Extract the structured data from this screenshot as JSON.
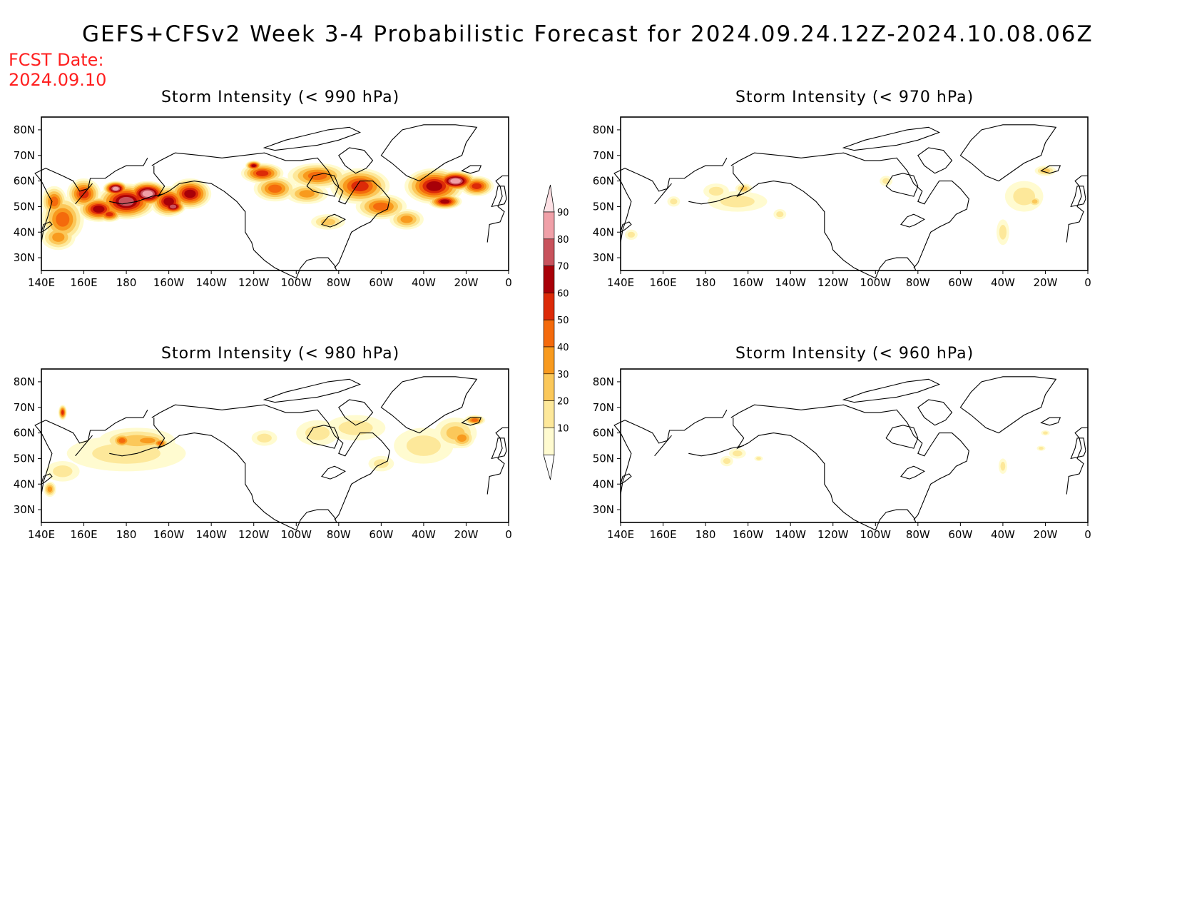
{
  "header": {
    "title": "GEFS+CFSv2 Week 3-4 Probabilistic Forecast for 2024.09.24.12Z-2024.10.08.06Z",
    "fcst_label": "FCST Date:",
    "fcst_value": "2024.09.10"
  },
  "axes": {
    "lon_labels": [
      "140E",
      "160E",
      "180",
      "160W",
      "140W",
      "120W",
      "100W",
      "80W",
      "60W",
      "40W",
      "20W",
      "0"
    ],
    "lat_labels": [
      "80N",
      "70N",
      "60N",
      "50N",
      "40N",
      "30N"
    ],
    "lon_range": [
      140,
      360
    ],
    "lat_range": [
      25,
      85
    ]
  },
  "colorbar": {
    "levels": [
      "10",
      "20",
      "30",
      "40",
      "50",
      "60",
      "70",
      "80",
      "90"
    ],
    "colors": [
      "#fffbd0",
      "#fde89a",
      "#fbc85a",
      "#f89a1e",
      "#f46a0c",
      "#dc2a08",
      "#a80008",
      "#c8525c",
      "#f0a0a8",
      "#fde0e4"
    ]
  },
  "panels": [
    {
      "title": "Storm Intensity (< 990 hPa)",
      "blobs": [
        [
          150,
          45,
          10,
          9,
          4
        ],
        [
          148,
          38,
          8,
          5,
          3
        ],
        [
          146,
          52,
          6,
          6,
          4
        ],
        [
          160,
          55,
          8,
          6,
          5
        ],
        [
          167,
          49,
          10,
          5,
          6
        ],
        [
          180,
          52,
          14,
          7,
          7
        ],
        [
          190,
          55,
          10,
          5,
          8
        ],
        [
          175,
          57,
          6,
          3,
          8
        ],
        [
          200,
          52,
          9,
          6,
          6
        ],
        [
          210,
          55,
          10,
          6,
          6
        ],
        [
          202,
          50,
          6,
          3,
          7
        ],
        [
          172,
          47,
          6,
          3,
          5
        ],
        [
          244,
          63,
          10,
          4,
          5
        ],
        [
          250,
          57,
          10,
          5,
          4
        ],
        [
          240,
          66,
          4,
          2,
          6
        ],
        [
          270,
          62,
          14,
          5,
          4
        ],
        [
          265,
          55,
          10,
          4,
          3
        ],
        [
          290,
          58,
          14,
          7,
          5
        ],
        [
          300,
          50,
          12,
          5,
          4
        ],
        [
          312,
          45,
          8,
          4,
          3
        ],
        [
          325,
          58,
          14,
          7,
          6
        ],
        [
          335,
          60,
          10,
          4,
          8
        ],
        [
          330,
          52,
          8,
          3,
          6
        ],
        [
          345,
          58,
          8,
          4,
          5
        ],
        [
          275,
          44,
          8,
          3,
          2
        ]
      ]
    },
    {
      "title": "Storm Intensity (< 970 hPa)",
      "blobs": [
        [
          195,
          52,
          14,
          4,
          1
        ],
        [
          185,
          56,
          6,
          3,
          1
        ],
        [
          198,
          57,
          4,
          2,
          2
        ],
        [
          215,
          47,
          3,
          2,
          1
        ],
        [
          265,
          60,
          3,
          2,
          1
        ],
        [
          320,
          40,
          3,
          5,
          1
        ],
        [
          330,
          54,
          9,
          6,
          1
        ],
        [
          335,
          52,
          3,
          2,
          2
        ],
        [
          340,
          64,
          5,
          2,
          2
        ],
        [
          145,
          39,
          3,
          2,
          1
        ],
        [
          165,
          52,
          3,
          2,
          1
        ]
      ]
    },
    {
      "title": "Storm Intensity (< 980 hPa)",
      "blobs": [
        [
          180,
          52,
          28,
          7,
          1
        ],
        [
          185,
          57,
          18,
          5,
          2
        ],
        [
          190,
          57,
          10,
          3,
          3
        ],
        [
          178,
          57,
          5,
          3,
          4
        ],
        [
          196,
          56,
          4,
          2,
          4
        ],
        [
          150,
          45,
          8,
          4,
          1
        ],
        [
          144,
          38,
          3,
          3,
          3
        ],
        [
          150,
          68,
          2,
          3,
          5
        ],
        [
          245,
          58,
          6,
          3,
          1
        ],
        [
          270,
          60,
          10,
          5,
          1
        ],
        [
          288,
          62,
          14,
          5,
          1
        ],
        [
          320,
          55,
          14,
          7,
          1
        ],
        [
          335,
          60,
          10,
          6,
          2
        ],
        [
          338,
          58,
          6,
          4,
          3
        ],
        [
          344,
          65,
          5,
          2,
          4
        ],
        [
          300,
          48,
          6,
          3,
          1
        ]
      ]
    },
    {
      "title": "Storm Intensity (< 960 hPa)",
      "blobs": [
        [
          195,
          52,
          4,
          2,
          1
        ],
        [
          190,
          49,
          3,
          2,
          1
        ],
        [
          205,
          50,
          2,
          1,
          1
        ],
        [
          320,
          47,
          2,
          3,
          1
        ],
        [
          340,
          60,
          2,
          1,
          1
        ],
        [
          338,
          54,
          2,
          1,
          1
        ]
      ]
    }
  ]
}
